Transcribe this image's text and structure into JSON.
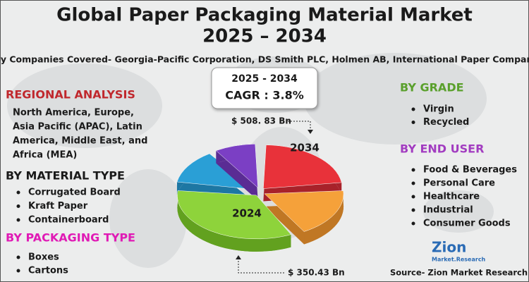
{
  "header": {
    "title": [
      "Global Paper Packaging Material Market",
      "2025 – 2034"
    ],
    "subtitle": "Key Companies Covered- Georgia-Pacific Corporation, DS Smith PLC, Holmen AB, International Paper Company."
  },
  "cagr_box": {
    "period": "2025 - 2034",
    "cagr": "CAGR : 3.8%"
  },
  "market_size": {
    "end": "$ 508. 83 Bn",
    "start": "$ 350.43 Bn"
  },
  "pie_labels": {
    "end_year": "2034",
    "start_year": "2024"
  },
  "regional_analysis": {
    "heading": "REGIONAL ANALYSIS",
    "lines": [
      "North America, Europe,",
      "Asia Pacific (APAC), Latin",
      "America, Middle East, and",
      "Africa (MEA)"
    ]
  },
  "material_type": {
    "heading": "BY MATERIAL TYPE",
    "items": [
      "Corrugated Board",
      "Kraft Paper",
      "Containerboard"
    ]
  },
  "packaging_type": {
    "heading": "BY PACKAGING TYPE",
    "items": [
      "Boxes",
      "Cartons"
    ]
  },
  "grade": {
    "heading": "BY GRADE",
    "items": [
      "Virgin",
      "Recycled"
    ]
  },
  "end_user": {
    "heading": "BY END USER",
    "items": [
      "Food & Beverages",
      "Personal Care",
      "Healthcare",
      "Industrial",
      "Consumer Goods"
    ]
  },
  "logo": {
    "name": "Zion",
    "tagline": "Market.Research"
  },
  "source": "Source- Zion Market Research"
}
